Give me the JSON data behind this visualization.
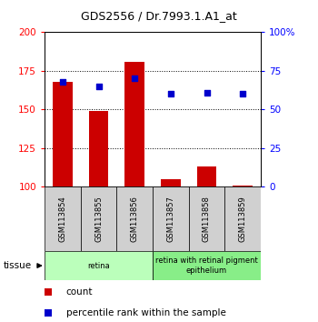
{
  "title": "GDS2556 / Dr.7993.1.A1_at",
  "samples": [
    "GSM113854",
    "GSM113855",
    "GSM113856",
    "GSM113857",
    "GSM113858",
    "GSM113859"
  ],
  "counts": [
    168,
    149,
    181,
    105,
    113,
    101
  ],
  "percentiles": [
    68,
    65,
    70,
    60,
    61,
    60
  ],
  "count_baseline": 100,
  "ylim_left": [
    100,
    200
  ],
  "ylim_right": [
    0,
    100
  ],
  "yticks_left": [
    100,
    125,
    150,
    175,
    200
  ],
  "yticks_right": [
    0,
    25,
    50,
    75,
    100
  ],
  "ytick_labels_right": [
    "0",
    "25",
    "50",
    "75",
    "100%"
  ],
  "bar_color": "#cc0000",
  "dot_color": "#0000cc",
  "tissue_groups": [
    {
      "label": "retina",
      "start": 0,
      "end": 3,
      "color": "#bbffbb"
    },
    {
      "label": "retina with retinal pigment\nepithelium",
      "start": 3,
      "end": 6,
      "color": "#88ee88"
    }
  ],
  "legend_items": [
    {
      "label": "count",
      "color": "#cc0000"
    },
    {
      "label": "percentile rank within the sample",
      "color": "#0000cc"
    }
  ],
  "tissue_label": "tissue",
  "figsize": [
    3.5,
    3.54
  ],
  "dpi": 100
}
